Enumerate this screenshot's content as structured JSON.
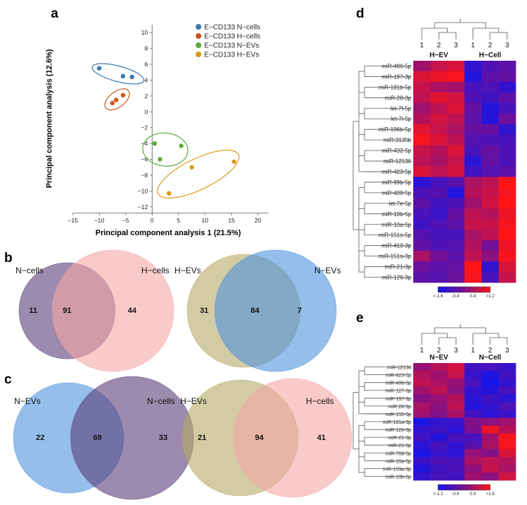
{
  "colors": {
    "n_cells": "#3a7ab4",
    "h_cells": "#c8581a",
    "n_evs": "#5aaa3a",
    "h_evs": "#d89a12",
    "heat_low": "#1515e8",
    "heat_mid": "#7a1090",
    "heat_high": "#ff1515"
  },
  "panels": {
    "a": "a",
    "b": "b",
    "c": "c",
    "d": "d",
    "e": "e"
  },
  "chart_data": [
    {
      "panel": "a",
      "type": "scatter",
      "xlabel": "Principal component analysis 1 (21.5%)",
      "ylabel": "Principal component analysis (12.6%)",
      "xlim": [
        -15,
        22
      ],
      "ylim": [
        -13,
        11
      ],
      "xticks": [
        -15,
        -10,
        -5,
        0,
        5,
        10,
        15,
        20
      ],
      "yticks": [
        -12,
        -10,
        -8,
        -6,
        -4,
        -2,
        0,
        2,
        4,
        6,
        8,
        10
      ],
      "series": [
        {
          "name": "E−CD133 N−cells",
          "color_key": "n_cells",
          "points": [
            [
              -10,
              5.5
            ],
            [
              -5.5,
              4.5
            ],
            [
              -3.8,
              4.4
            ]
          ]
        },
        {
          "name": "E−CD133 H−cells",
          "color_key": "h_cells",
          "points": [
            [
              -7.5,
              1.1
            ],
            [
              -6.8,
              1.5
            ],
            [
              -5.5,
              2.1
            ]
          ]
        },
        {
          "name": "E−CD133 N−EVs",
          "color_key": "n_evs",
          "points": [
            [
              0.5,
              -4
            ],
            [
              1.5,
              -6
            ],
            [
              5.5,
              -4.3
            ]
          ]
        },
        {
          "name": "E−CD133 H−EVs",
          "color_key": "h_evs",
          "points": [
            [
              3.2,
              -10.3
            ],
            [
              7.5,
              -7
            ],
            [
              15.5,
              -6.3
            ]
          ]
        }
      ]
    },
    {
      "panel": "b",
      "type": "venn",
      "diagrams": [
        {
          "left_label": "N−cells",
          "right_label": "H−cells",
          "left_only": "11",
          "overlap": "91",
          "right_only": "44"
        },
        {
          "left_label": "H−EVs",
          "right_label": "N−EVs",
          "left_only": "31",
          "overlap": "84",
          "right_only": "7"
        }
      ]
    },
    {
      "panel": "c",
      "type": "venn",
      "diagrams": [
        {
          "left_label": "N−EVs",
          "right_label": "N−cells",
          "left_only": "22",
          "overlap": "69",
          "right_only": "33"
        },
        {
          "left_label": "H−EVs",
          "right_label": "H−cells",
          "left_only": "21",
          "overlap": "94",
          "right_only": "41"
        }
      ]
    },
    {
      "panel": "d",
      "type": "heatmap",
      "group_labels": [
        "H−EV",
        "H−Cell"
      ],
      "column_labels": [
        "1",
        "2",
        "3",
        "1",
        "2",
        "3"
      ],
      "rows": [
        "miR-486-5p",
        "miR-197-3p",
        "miR-181b-5p",
        "miR-28-3p",
        "let-7f-5p",
        "let-7i-5p",
        "miR-196b-5p",
        "miR-3135b",
        "miR-432-5p",
        "miR-12136",
        "miR-423-5p",
        "miR-99b-5p",
        "miR-409-5p",
        "let-7e-5p",
        "miR-10b-5p",
        "miR-10a-5p",
        "miR-151a-5p",
        "miR-410-3p",
        "miR-151a-3p",
        "miR-21-3p",
        "miR-126-3p"
      ],
      "values": [
        [
          0.2,
          0.6,
          0.8,
          -1.2,
          -0.8,
          -0.6
        ],
        [
          0.8,
          1.0,
          1.1,
          -1.4,
          -0.6,
          -0.5
        ],
        [
          0.6,
          0.3,
          0.2,
          -0.9,
          -0.8,
          -1.2
        ],
        [
          0.5,
          0.9,
          0.7,
          -0.8,
          -1.0,
          -0.6
        ],
        [
          0.2,
          0.5,
          0.8,
          -0.5,
          -1.4,
          -0.9
        ],
        [
          0.4,
          0.7,
          0.5,
          -0.6,
          -1.4,
          -0.4
        ],
        [
          0.9,
          0.6,
          0.3,
          -0.5,
          -0.5,
          -1.2
        ],
        [
          1.1,
          0.8,
          0.5,
          -0.7,
          -0.8,
          -0.9
        ],
        [
          0.6,
          0.4,
          0.8,
          -0.9,
          -0.5,
          -0.8
        ],
        [
          0.5,
          0.3,
          0.6,
          -1.3,
          -0.5,
          -0.8
        ],
        [
          0.8,
          0.5,
          0.7,
          -1.0,
          -0.7,
          -0.6
        ],
        [
          -1.3,
          -0.9,
          -0.7,
          0.3,
          0.5,
          1.2
        ],
        [
          -0.8,
          -0.7,
          -1.4,
          0.4,
          0.6,
          1.1
        ],
        [
          -0.6,
          -1.0,
          -0.8,
          0.2,
          0.7,
          1.2
        ],
        [
          -0.9,
          -1.1,
          -0.5,
          0.5,
          0.4,
          1.0
        ],
        [
          -1.0,
          -0.8,
          -0.6,
          0.6,
          0.6,
          1.1
        ],
        [
          -0.7,
          -0.9,
          -0.9,
          0.3,
          0.5,
          1.2
        ],
        [
          -0.5,
          -0.8,
          -0.7,
          0.4,
          -0.3,
          1.0
        ],
        [
          0.3,
          -0.3,
          -0.6,
          0.5,
          0.0,
          1.1
        ],
        [
          -0.4,
          -0.6,
          -0.5,
          1.2,
          -1.2,
          0.8
        ],
        [
          -0.6,
          -0.7,
          -0.4,
          1.1,
          -0.9,
          0.6
        ]
      ],
      "color_range": [
        -1.6,
        1.2
      ],
      "scale_ticks": [
        "<-1.6",
        "-0.4",
        "0.4",
        ">1.2"
      ]
    },
    {
      "panel": "e",
      "type": "heatmap",
      "group_labels": [
        "N−EV",
        "N−Cell"
      ],
      "column_labels": [
        "1",
        "2",
        "3",
        "1",
        "2",
        "3"
      ],
      "rows": [
        "miR-12136",
        "miR-423-5p",
        "miR-486-5p",
        "miR-127-3p",
        "miR-197-3p",
        "miR-28-3p",
        "miR-155-5p",
        "miR-181a-3p",
        "miR-126-3p",
        "miR-21-3p",
        "miR-21-5p",
        "miR-769-5p",
        "miR-10a-5p",
        "miR-103a-3p",
        "miR-10b-5p"
      ],
      "values": [
        [
          0.5,
          0.8,
          1.1,
          -0.6,
          -0.5,
          -0.7
        ],
        [
          0.8,
          0.6,
          1.0,
          -0.7,
          -1.1,
          -0.6
        ],
        [
          0.9,
          0.7,
          0.5,
          -0.5,
          -1.2,
          -0.8
        ],
        [
          0.6,
          0.9,
          0.4,
          -0.8,
          -1.0,
          -0.5
        ],
        [
          0.3,
          0.5,
          0.8,
          -0.9,
          -0.6,
          -0.9
        ],
        [
          0.7,
          0.4,
          0.9,
          -1.0,
          -0.8,
          -0.4
        ],
        [
          0.6,
          0.3,
          0.7,
          -0.6,
          -0.9,
          -0.7
        ],
        [
          -1.1,
          -0.8,
          -0.7,
          0.3,
          0.4,
          0.6
        ],
        [
          -0.8,
          -0.6,
          -0.9,
          0.2,
          1.4,
          0.8
        ],
        [
          -0.6,
          -1.0,
          -0.5,
          -0.5,
          0.6,
          1.5
        ],
        [
          -0.9,
          -0.5,
          -0.8,
          -0.3,
          0.7,
          1.5
        ],
        [
          -1.1,
          -0.7,
          -0.9,
          0.5,
          0.3,
          1.2
        ],
        [
          -0.7,
          -0.4,
          -0.5,
          0.7,
          0.9,
          0.8
        ],
        [
          -1.0,
          -0.6,
          -0.4,
          0.4,
          1.0,
          0.7
        ],
        [
          -0.8,
          -0.5,
          -0.6,
          0.6,
          0.4,
          1.1
        ]
      ],
      "color_range": [
        -1.2,
        1.6
      ],
      "scale_ticks": [
        "<-1.2",
        "-0.4",
        "0.4",
        ">1.6"
      ]
    }
  ]
}
